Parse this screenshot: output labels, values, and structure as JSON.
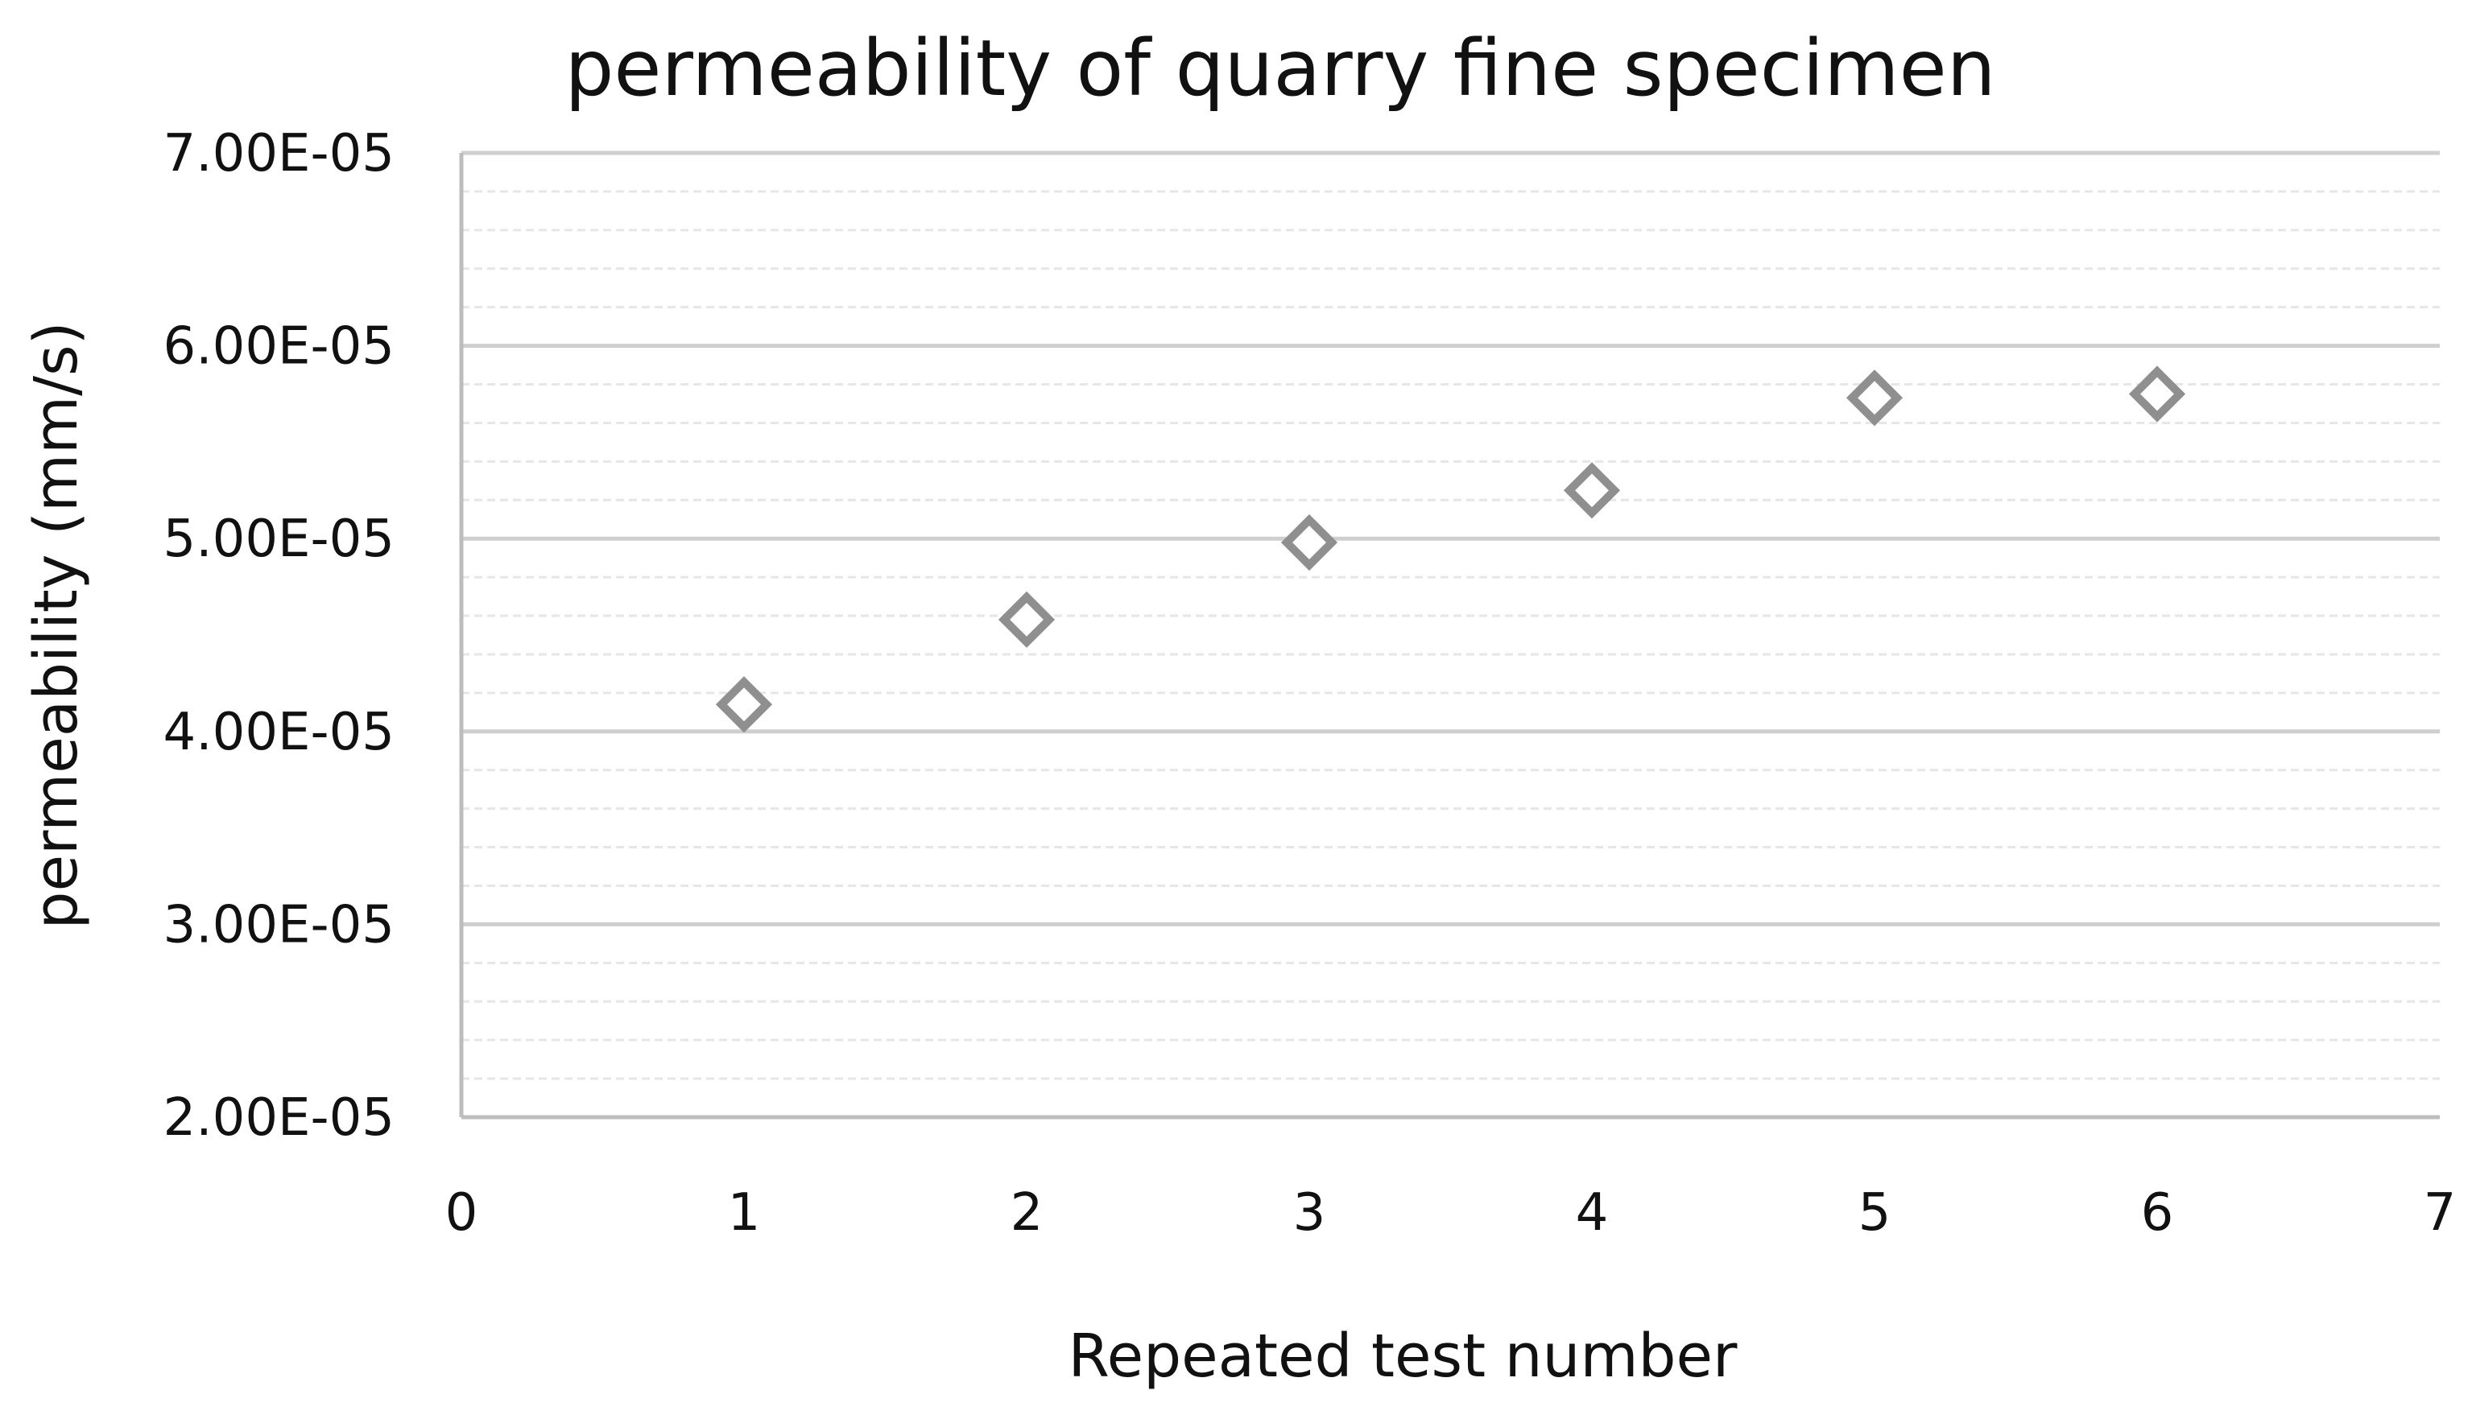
{
  "chart_data": {
    "type": "scatter",
    "title": "permeability of quarry fine specimen",
    "xlabel": "Repeated test number",
    "ylabel": "permeability (mm/s)",
    "xlim": [
      0,
      7
    ],
    "ylim": [
      2e-05,
      7e-05
    ],
    "x_tick_labels": [
      "0",
      "1",
      "2",
      "3",
      "4",
      "5",
      "6",
      "7"
    ],
    "y_tick_labels": [
      "2.00E-05",
      "3.00E-05",
      "4.00E-05",
      "5.00E-05",
      "6.00E-05",
      "7.00E-05"
    ],
    "grid": true,
    "legend": "none",
    "series": [
      {
        "marker": "diamond",
        "color": "#8f8f8f",
        "points": [
          {
            "x": 1,
            "y": 4.14e-05
          },
          {
            "x": 2,
            "y": 4.58e-05
          },
          {
            "x": 3,
            "y": 4.98e-05
          },
          {
            "x": 4,
            "y": 5.25e-05
          },
          {
            "x": 5,
            "y": 5.73e-05
          },
          {
            "x": 6,
            "y": 5.75e-05
          }
        ]
      }
    ]
  }
}
